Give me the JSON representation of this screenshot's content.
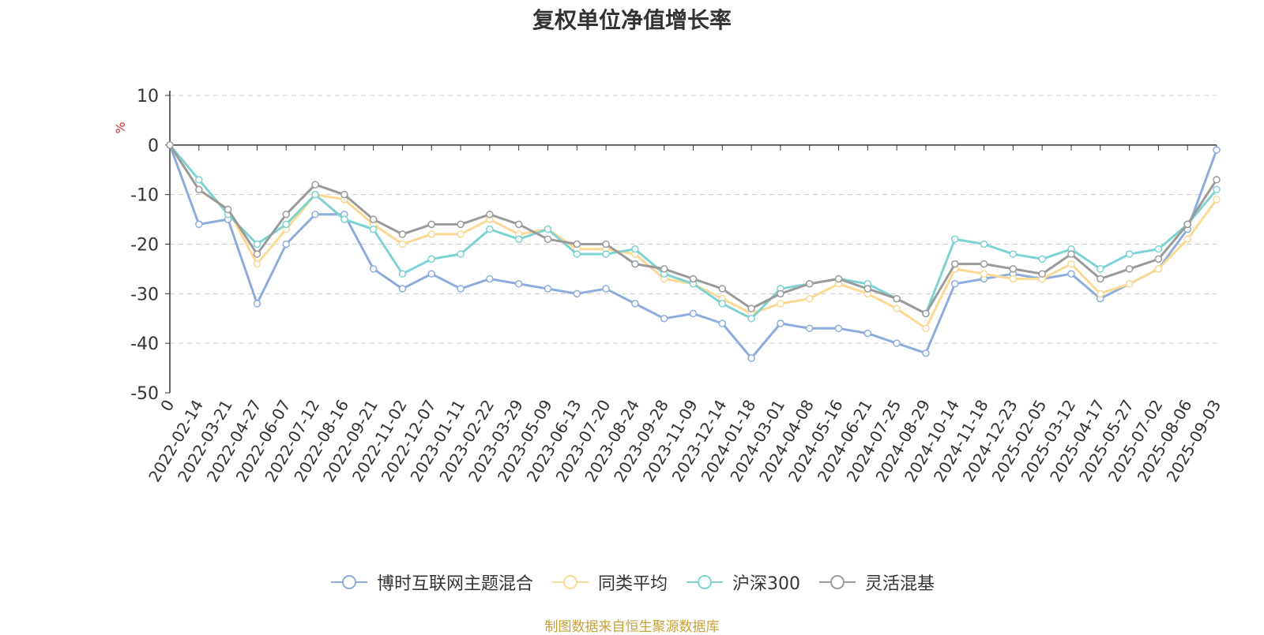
{
  "chart_data": {
    "type": "line",
    "title": "复权单位净值增长率",
    "ylabel": "%",
    "ylim": [
      -50,
      10
    ],
    "yticks": [
      10,
      0,
      -10,
      -20,
      -30,
      -40,
      -50
    ],
    "x": [
      "0",
      "2022-02-14",
      "2022-03-21",
      "2022-04-27",
      "2022-06-07",
      "2022-07-12",
      "2022-08-16",
      "2022-09-21",
      "2022-11-02",
      "2022-12-07",
      "2023-01-11",
      "2023-02-22",
      "2023-03-29",
      "2023-05-09",
      "2023-06-13",
      "2023-07-20",
      "2023-08-24",
      "2023-09-28",
      "2023-11-09",
      "2023-12-14",
      "2024-01-18",
      "2024-03-01",
      "2024-04-08",
      "2024-05-16",
      "2024-06-21",
      "2024-07-25",
      "2024-08-29",
      "2024-10-14",
      "2024-11-18",
      "2024-12-23",
      "2025-02-05",
      "2025-03-12",
      "2025-04-17",
      "2025-05-27",
      "2025-07-02",
      "2025-08-06",
      "2025-09-03"
    ],
    "grid": true,
    "legend_position": "bottom",
    "series": [
      {
        "name": "博时互联网主题混合",
        "color": "#8eacdb",
        "values": [
          0,
          -16,
          -15,
          -32,
          -20,
          -14,
          -14,
          -25,
          -29,
          -26,
          -29,
          -27,
          -28,
          -29,
          -30,
          -29,
          -32,
          -35,
          -34,
          -36,
          -43,
          -36,
          -37,
          -37,
          -38,
          -40,
          -42,
          -28,
          -27,
          -26,
          -27,
          -26,
          -31,
          -28,
          -25,
          -17,
          -1
        ]
      },
      {
        "name": "同类平均",
        "color": "#fcd993",
        "values": [
          0,
          -9,
          -13,
          -24,
          -17,
          -10,
          -11,
          -16,
          -20,
          -18,
          -18,
          -15,
          -18,
          -17,
          -21,
          -21,
          -22,
          -27,
          -28,
          -31,
          -34,
          -32,
          -31,
          -28,
          -30,
          -33,
          -37,
          -25,
          -26,
          -27,
          -27,
          -24,
          -30,
          -28,
          -25,
          -19,
          -11
        ]
      },
      {
        "name": "沪深300",
        "color": "#7dd2d2",
        "values": [
          0,
          -7,
          -14,
          -20,
          -16,
          -10,
          -15,
          -17,
          -26,
          -23,
          -22,
          -17,
          -19,
          -17,
          -22,
          -22,
          -21,
          -26,
          -28,
          -32,
          -35,
          -29,
          -28,
          -27,
          -28,
          -31,
          -34,
          -19,
          -20,
          -22,
          -23,
          -21,
          -25,
          -22,
          -21,
          -16,
          -9
        ]
      },
      {
        "name": "灵活混基",
        "color": "#9a9a9a",
        "values": [
          0,
          -9,
          -13,
          -22,
          -14,
          -8,
          -10,
          -15,
          -18,
          -16,
          -16,
          -14,
          -16,
          -19,
          -20,
          -20,
          -24,
          -25,
          -27,
          -29,
          -33,
          -30,
          -28,
          -27,
          -29,
          -31,
          -34,
          -24,
          -24,
          -25,
          -26,
          -22,
          -27,
          -25,
          -23,
          -16,
          -7
        ]
      }
    ]
  },
  "legend": {
    "items": [
      "博时互联网主题混合",
      "同类平均",
      "沪深300",
      "灵活混基"
    ]
  },
  "source_note": "制图数据来自恒生聚源数据库"
}
